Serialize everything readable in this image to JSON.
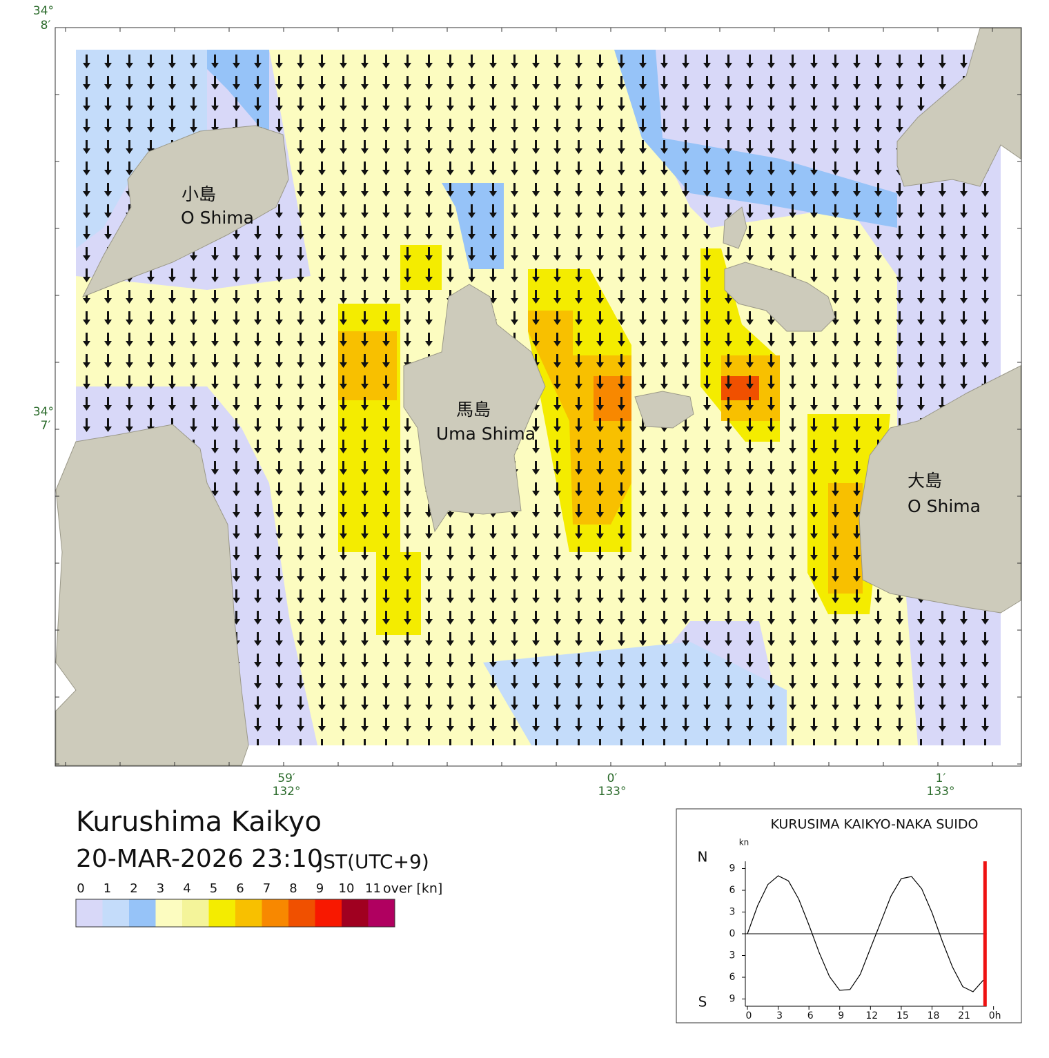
{
  "map": {
    "title": "Kurushima Kaikyo",
    "datetime": "20-MAR-2026 23:10",
    "timezone": "JST(UTC+9)",
    "lat_labels": [
      {
        "deg": "34°",
        "min": "8′"
      },
      {
        "deg": "34°",
        "min": "7′"
      }
    ],
    "lon_labels": [
      {
        "min": "59′",
        "deg": "132°"
      },
      {
        "min": "0′",
        "deg": "133°"
      },
      {
        "min": "1′",
        "deg": "133°"
      }
    ],
    "places": [
      {
        "name_ja": "小島",
        "name_en": "O Shima"
      },
      {
        "name_ja": "馬島",
        "name_en": "Uma Shima"
      },
      {
        "name_ja": "大島",
        "name_en": "O Shima"
      }
    ]
  },
  "legend": {
    "ticks": [
      0,
      1,
      2,
      3,
      4,
      5,
      6,
      7,
      8,
      9,
      10,
      11
    ],
    "over_label": "over [kn]",
    "colors": [
      "#d8d8f8",
      "#c4dcfa",
      "#96c3f8",
      "#fcfcc0",
      "#f4f49a",
      "#f4ec00",
      "#f8c000",
      "#f88800",
      "#f05000",
      "#f81800",
      "#a00020",
      "#b00060"
    ]
  },
  "chart_data": {
    "type": "line",
    "title": "KURUSIMA KAIKYO-NAKA SUIDO",
    "y_unit": "kn",
    "north_label": "N",
    "south_label": "S",
    "x": [
      0,
      1,
      2,
      3,
      4,
      5,
      6,
      7,
      8,
      9,
      10,
      11,
      12,
      13,
      14,
      15,
      16,
      17,
      18,
      19,
      20,
      21,
      22,
      23
    ],
    "series": [
      {
        "color": "#000000",
        "values": [
          0,
          3.9,
          6.8,
          8,
          7.3,
          4.8,
          1.2,
          -2.6,
          -5.9,
          -7.8,
          -7.7,
          -5.6,
          -2,
          1.6,
          5.2,
          7.6,
          7.9,
          6.2,
          2.9,
          -1,
          -4.6,
          -7.3,
          -8,
          -6.4
        ]
      }
    ],
    "xlim": [
      0,
      24
    ],
    "ylim": [
      -10,
      10
    ],
    "xticks": [
      0,
      3,
      6,
      9,
      12,
      15,
      18,
      21,
      {
        "value": 24,
        "label": "0h"
      }
    ],
    "yticks": [
      9,
      6,
      3,
      0,
      {
        "value": -3,
        "label": "3"
      },
      {
        "value": -6,
        "label": "6"
      },
      {
        "value": -9,
        "label": "9"
      }
    ],
    "current_time": 23.17,
    "current_color": "#ee1111"
  }
}
